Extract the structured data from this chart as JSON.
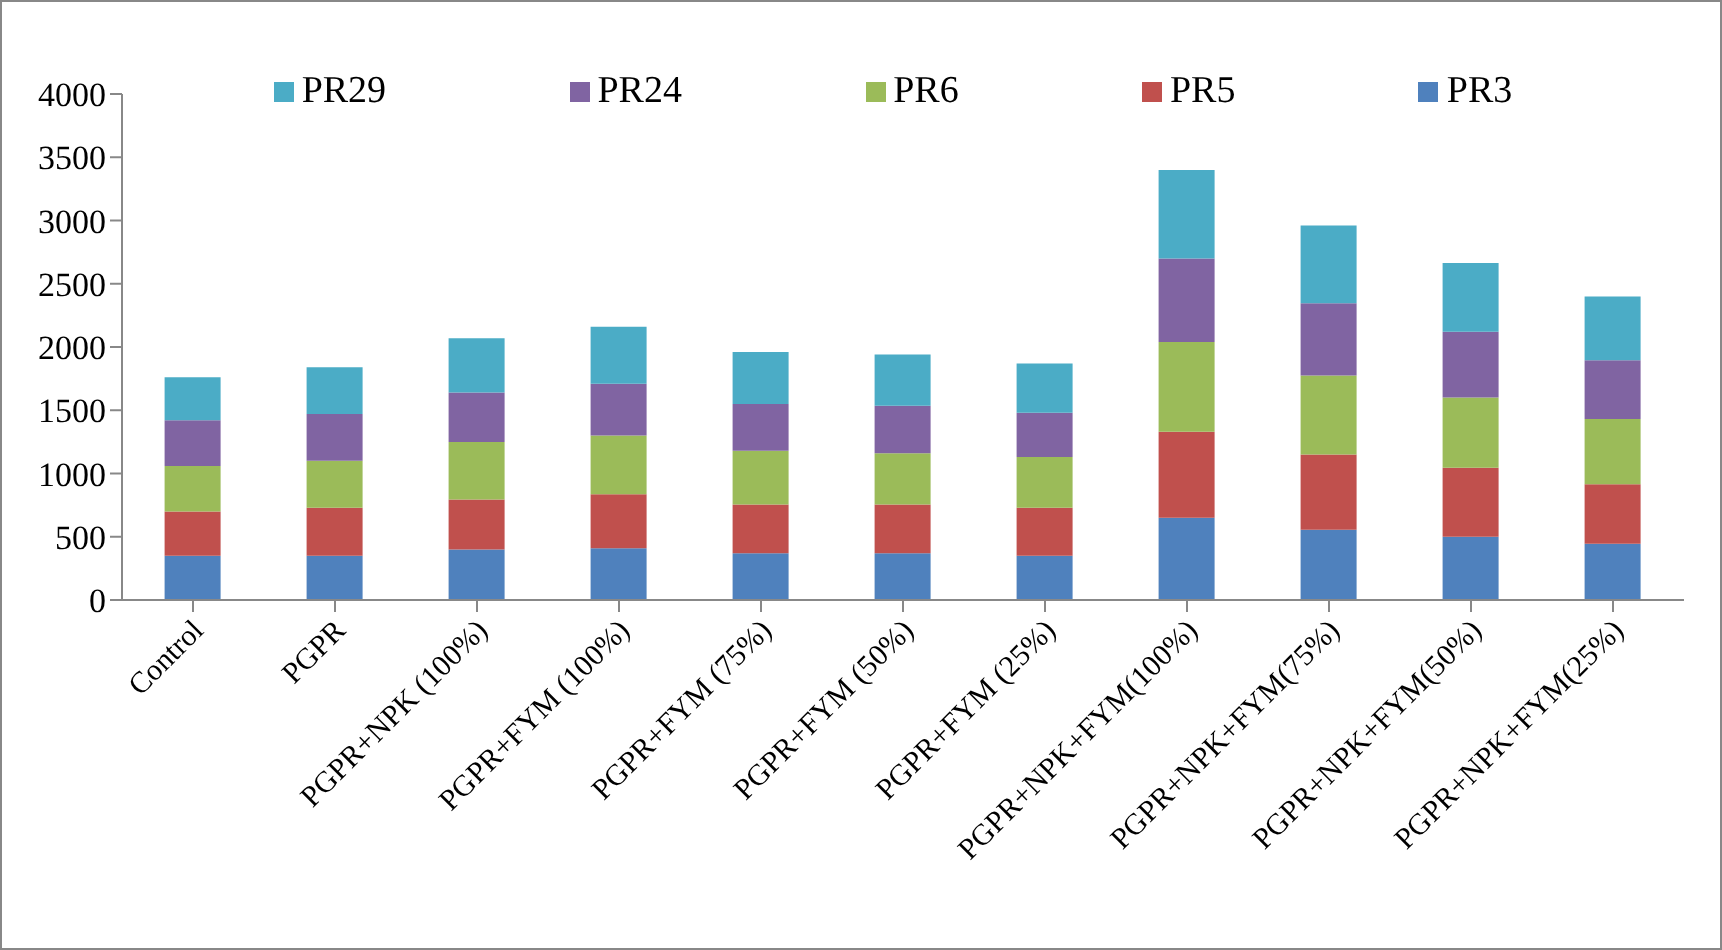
{
  "chart_data": {
    "type": "bar",
    "stacked": true,
    "categories": [
      "Control",
      "PGPR",
      "PGPR+NPK (100%)",
      "PGPR+FYM (100%)",
      "PGPR+FYM (75%)",
      "PGPR+FYM (50%)",
      "PGPR+FYM (25%)",
      "PGPR+NPK+FYM(100%)",
      "PGPR+NPK+FYM(75%)",
      "PGPR+NPK+FYM(50%)",
      "PGPR+NPK+FYM(25%)"
    ],
    "series": [
      {
        "name": "PR3",
        "color": "#4f81bd",
        "values": [
          350,
          350,
          400,
          410,
          370,
          370,
          350,
          650,
          555,
          500,
          445
        ]
      },
      {
        "name": "PR5",
        "color": "#c0504d",
        "values": [
          350,
          380,
          395,
          425,
          385,
          385,
          380,
          680,
          595,
          545,
          470
        ]
      },
      {
        "name": "PR6",
        "color": "#9bbb59",
        "values": [
          360,
          370,
          455,
          465,
          425,
          405,
          400,
          710,
          625,
          555,
          515
        ]
      },
      {
        "name": "PR24",
        "color": "#8064a2",
        "values": [
          360,
          370,
          390,
          410,
          370,
          375,
          350,
          660,
          570,
          520,
          465
        ]
      },
      {
        "name": "PR29",
        "color": "#4bacc6",
        "values": [
          340,
          370,
          430,
          450,
          410,
          405,
          390,
          700,
          615,
          545,
          505
        ]
      }
    ],
    "ylim": [
      0,
      4000
    ],
    "yticks": [
      0,
      500,
      1000,
      1500,
      2000,
      2500,
      3000,
      3500,
      4000
    ],
    "grid": false,
    "legend": "top"
  }
}
